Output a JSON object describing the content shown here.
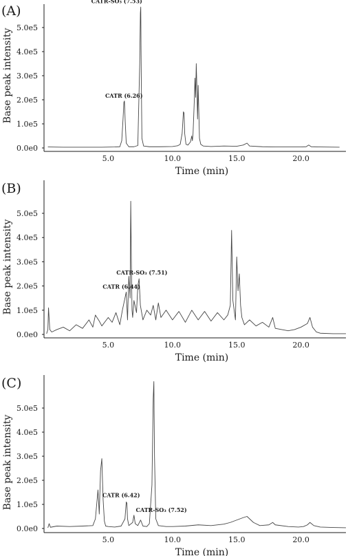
{
  "chart_data": [
    {
      "type": "line",
      "panel_label": "(A)",
      "xlabel": "Time (min)",
      "ylabel": "Base peak intensity",
      "xlim": [
        0,
        23.5
      ],
      "ylim": [
        0,
        600000
      ],
      "xticks": [
        {
          "v": 5,
          "label": "5.0"
        },
        {
          "v": 10,
          "label": "10.0"
        },
        {
          "v": 15,
          "label": "15.0"
        },
        {
          "v": 20,
          "label": "20.0"
        }
      ],
      "yticks": [
        {
          "v": 0,
          "label": "0.0e0"
        },
        {
          "v": 100000,
          "label": "1.0e5"
        },
        {
          "v": 200000,
          "label": "2.0e5"
        },
        {
          "v": 300000,
          "label": "3.0e5"
        },
        {
          "v": 400000,
          "label": "4.0e5"
        },
        {
          "v": 500000,
          "label": "5.0e5"
        }
      ],
      "series": [
        {
          "color": "#444444",
          "x": [
            0.3,
            1.5,
            3.0,
            4.5,
            5.5,
            5.9,
            6.05,
            6.15,
            6.22,
            6.26,
            6.32,
            6.4,
            6.6,
            7.0,
            7.3,
            7.45,
            7.5,
            7.53,
            7.57,
            7.62,
            7.75,
            8.2,
            9.0,
            10.0,
            10.4,
            10.6,
            10.75,
            10.85,
            10.9,
            10.95,
            11.05,
            11.2,
            11.4,
            11.5,
            11.55,
            11.6,
            11.7,
            11.75,
            11.8,
            11.85,
            11.9,
            11.95,
            12.0,
            12.05,
            12.1,
            12.2,
            12.4,
            13.0,
            14.0,
            15.0,
            15.5,
            15.8,
            16.0,
            17.0,
            18.0,
            19.0,
            20.0,
            20.4,
            20.6,
            20.8,
            21.5,
            23.0
          ],
          "y": [
            4000,
            3000,
            3000,
            3000,
            4000,
            5000,
            30000,
            120000,
            190000,
            195000,
            110000,
            20000,
            5000,
            5000,
            10000,
            350000,
            560000,
            585000,
            300000,
            40000,
            8000,
            5000,
            5000,
            6000,
            9000,
            15000,
            60000,
            150000,
            145000,
            60000,
            15000,
            12000,
            25000,
            50000,
            30000,
            60000,
            200000,
            290000,
            210000,
            350000,
            250000,
            120000,
            260000,
            150000,
            40000,
            15000,
            8000,
            6000,
            8000,
            7000,
            12000,
            20000,
            8000,
            5000,
            4000,
            4000,
            4000,
            5000,
            12000,
            5000,
            4000,
            3000
          ]
        }
      ],
      "annotations": [
        {
          "text": "CATR-SO₃ (7.53)",
          "x": 7.53,
          "y": 585000
        },
        {
          "text": "CATR (6.26)",
          "x": 6.26,
          "y": 195000
        }
      ]
    },
    {
      "type": "line",
      "panel_label": "(B)",
      "xlabel": "Time (min)",
      "ylabel": "Base peak intensity",
      "xlim": [
        0,
        23.5
      ],
      "ylim": [
        0,
        600000
      ],
      "xticks": [
        {
          "v": 5,
          "label": "5.0"
        },
        {
          "v": 10,
          "label": "10.0"
        },
        {
          "v": 15,
          "label": "15.0"
        },
        {
          "v": 20,
          "label": "20.0"
        }
      ],
      "yticks": [
        {
          "v": 0,
          "label": "0.0e0"
        },
        {
          "v": 100000,
          "label": "1.0e5"
        },
        {
          "v": 200000,
          "label": "2.0e5"
        },
        {
          "v": 300000,
          "label": "3.0e5"
        },
        {
          "v": 400000,
          "label": "4.0e5"
        },
        {
          "v": 500000,
          "label": "5.0e5"
        }
      ],
      "series": [
        {
          "color": "#444444",
          "x": [
            0.2,
            0.3,
            0.35,
            0.45,
            0.6,
            1.0,
            1.5,
            2.0,
            2.5,
            3.0,
            3.5,
            3.8,
            4.0,
            4.3,
            4.5,
            5.0,
            5.3,
            5.6,
            5.9,
            6.1,
            6.3,
            6.4,
            6.5,
            6.6,
            6.7,
            6.75,
            6.8,
            6.85,
            6.9,
            7.0,
            7.2,
            7.3,
            7.4,
            7.5,
            7.7,
            8.0,
            8.3,
            8.5,
            8.7,
            8.9,
            9.1,
            9.5,
            10.0,
            10.5,
            11.0,
            11.5,
            12.0,
            12.5,
            13.0,
            13.5,
            14.0,
            14.3,
            14.5,
            14.6,
            14.7,
            14.9,
            15.0,
            15.1,
            15.2,
            15.3,
            15.4,
            15.6,
            16.0,
            16.5,
            17.0,
            17.5,
            17.8,
            18.0,
            18.5,
            19.0,
            19.5,
            20.0,
            20.5,
            20.7,
            20.9,
            21.2,
            21.5,
            22.5,
            23.5
          ],
          "y": [
            3000,
            20000,
            110000,
            20000,
            10000,
            20000,
            30000,
            15000,
            40000,
            25000,
            60000,
            30000,
            80000,
            55000,
            35000,
            70000,
            50000,
            90000,
            40000,
            100000,
            150000,
            175000,
            60000,
            240000,
            150000,
            550000,
            300000,
            100000,
            70000,
            140000,
            90000,
            200000,
            230000,
            120000,
            60000,
            100000,
            80000,
            120000,
            60000,
            130000,
            70000,
            100000,
            60000,
            95000,
            50000,
            100000,
            60000,
            95000,
            55000,
            90000,
            60000,
            80000,
            120000,
            430000,
            140000,
            60000,
            320000,
            180000,
            250000,
            120000,
            70000,
            40000,
            60000,
            35000,
            50000,
            30000,
            70000,
            25000,
            20000,
            15000,
            20000,
            30000,
            45000,
            70000,
            30000,
            10000,
            5000,
            3000,
            3000
          ]
        }
      ],
      "annotations": [
        {
          "text": "CATR-SO₃ (7.51)",
          "x": 7.51,
          "y": 230000
        },
        {
          "text": "CATR (6.44)",
          "x": 6.44,
          "y": 175000
        }
      ]
    },
    {
      "type": "line",
      "panel_label": "(C)",
      "xlabel": "Time (min)",
      "ylabel": "Base peak intensity",
      "xlim": [
        0,
        23.5
      ],
      "ylim": [
        0,
        600000
      ],
      "xticks": [
        {
          "v": 5,
          "label": "5.0"
        },
        {
          "v": 10,
          "label": "10.0"
        },
        {
          "v": 15,
          "label": "15.0"
        },
        {
          "v": 20,
          "label": "20.0"
        }
      ],
      "yticks": [
        {
          "v": 0,
          "label": "0.0e0"
        },
        {
          "v": 100000,
          "label": "1.0e5"
        },
        {
          "v": 200000,
          "label": "2.0e5"
        },
        {
          "v": 300000,
          "label": "3.0e5"
        },
        {
          "v": 400000,
          "label": "4.0e5"
        },
        {
          "v": 500000,
          "label": "5.0e5"
        }
      ],
      "series": [
        {
          "color": "#444444",
          "x": [
            0.3,
            0.4,
            0.5,
            1.0,
            2.0,
            3.0,
            3.8,
            4.0,
            4.2,
            4.3,
            4.4,
            4.5,
            4.6,
            4.7,
            4.8,
            5.0,
            5.5,
            6.0,
            6.3,
            6.4,
            6.45,
            6.5,
            6.6,
            6.9,
            7.0,
            7.1,
            7.3,
            7.52,
            7.7,
            8.0,
            8.2,
            8.4,
            8.5,
            8.55,
            8.6,
            8.7,
            8.9,
            9.5,
            10.0,
            11.0,
            12.0,
            13.0,
            14.0,
            14.5,
            15.0,
            15.5,
            15.8,
            16.0,
            16.3,
            16.8,
            17.5,
            17.8,
            18.0,
            19.0,
            19.8,
            20.2,
            20.5,
            20.7,
            21.0,
            21.5,
            22.5,
            23.5
          ],
          "y": [
            3000,
            20000,
            5000,
            10000,
            8000,
            10000,
            12000,
            40000,
            160000,
            60000,
            240000,
            290000,
            120000,
            30000,
            10000,
            8000,
            6000,
            10000,
            40000,
            110000,
            105000,
            40000,
            12000,
            25000,
            55000,
            20000,
            12000,
            35000,
            10000,
            8000,
            20000,
            180000,
            540000,
            610000,
            300000,
            40000,
            12000,
            8000,
            8000,
            10000,
            15000,
            12000,
            18000,
            25000,
            35000,
            45000,
            50000,
            40000,
            25000,
            12000,
            15000,
            25000,
            15000,
            8000,
            6000,
            8000,
            15000,
            25000,
            12000,
            6000,
            4000,
            3000
          ]
        }
      ],
      "annotations": [
        {
          "text": "CATR (6.42)",
          "x": 6.42,
          "y": 110000
        },
        {
          "text": "CATR-SO₃ (7.52)",
          "x": 7.52,
          "y": 35000
        }
      ]
    }
  ]
}
